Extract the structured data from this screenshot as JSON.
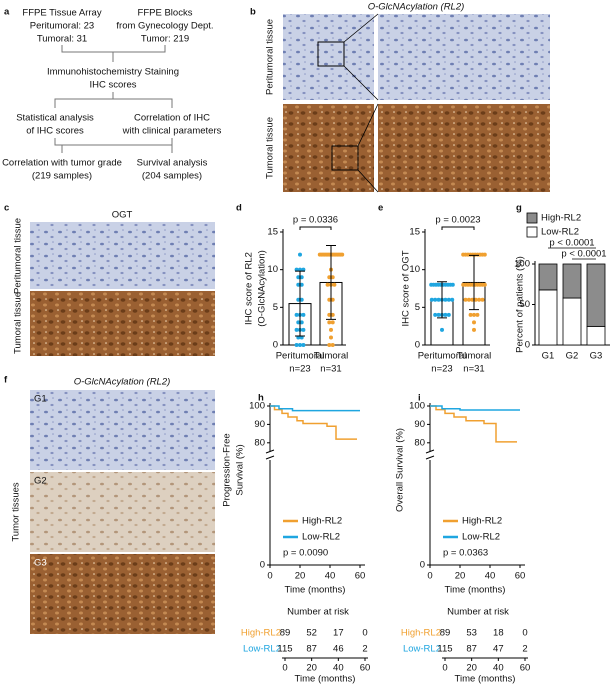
{
  "panel_labels": [
    "a",
    "b",
    "c",
    "d",
    "e",
    "f",
    "g",
    "h",
    "i"
  ],
  "flowchart": {
    "nodes": [
      {
        "lines": [
          "FFPE Tissue Array",
          "Peritumoral: 23",
          "Tumoral: 31"
        ]
      },
      {
        "lines": [
          "FFPE Blocks",
          "from Gynecology Dept.",
          "Tumor: 219"
        ]
      },
      {
        "lines": [
          "Immunohistochemistry Staining",
          "IHC scores"
        ]
      },
      {
        "lines": [
          "Statistical analysis",
          "of IHC scores"
        ]
      },
      {
        "lines": [
          "Correlation of IHC",
          "with clinical parameters"
        ]
      },
      {
        "lines": [
          "Correlation with tumor grade",
          "(219 samples)"
        ]
      },
      {
        "lines": [
          "Survival analysis",
          "(204 samples)"
        ]
      }
    ]
  },
  "images": {
    "b": {
      "title": "O-GlcNAcylation (RL2)",
      "rows": [
        "Peritumoral tissue",
        "Tumoral tissue"
      ]
    },
    "c": {
      "title": "OGT",
      "rows": [
        "Peritumoral tissue",
        "Tumoral tissue"
      ]
    },
    "f": {
      "title": "O-GlcNAcylation (RL2)",
      "side_label": "Tumor tissues",
      "grades": [
        "G1",
        "G2",
        "G3"
      ]
    }
  },
  "chart_data": [
    {
      "type": "bar_scatter",
      "ylabel": [
        "IHC score of RL2",
        "(O-GlcNAcylation)"
      ],
      "categories": [
        "Peritumoral",
        "Tumoral"
      ],
      "n_labels": [
        "n=23",
        "n=31"
      ],
      "series": [
        {
          "color": "#1fa6e0",
          "value": 5.5,
          "error": 4.3,
          "points": [
            0,
            0,
            0,
            1,
            1,
            2,
            2,
            2,
            3,
            3,
            4,
            4,
            4,
            6,
            6,
            8,
            8,
            9,
            9,
            10,
            10,
            10,
            12
          ]
        },
        {
          "color": "#f0a030",
          "value": 8.3,
          "error": 4.9,
          "points": [
            0,
            0,
            1,
            2,
            3,
            3,
            4,
            4,
            6,
            6,
            8,
            8,
            8,
            9,
            9,
            10,
            12,
            12,
            12,
            12,
            12,
            12,
            12,
            12,
            12,
            12,
            12,
            12,
            12,
            12,
            12
          ]
        }
      ],
      "ylim": [
        0,
        15
      ],
      "yticks": [
        0,
        5,
        10,
        15
      ],
      "annotation": "p = 0.0336"
    },
    {
      "type": "bar_scatter",
      "ylabel": [
        "IHC score of OGT"
      ],
      "categories": [
        "Peritumoral",
        "Tumoral"
      ],
      "n_labels": [
        "n=23",
        "n=31"
      ],
      "series": [
        {
          "color": "#1fa6e0",
          "value": 6.0,
          "error": 2.4,
          "points": [
            2,
            4,
            4,
            4,
            4,
            4,
            6,
            6,
            6,
            6,
            6,
            6,
            6,
            8,
            8,
            8,
            8,
            8,
            8,
            8,
            8,
            8,
            8
          ]
        },
        {
          "color": "#f0a030",
          "value": 8.3,
          "error": 3.6,
          "points": [
            2,
            3,
            4,
            4,
            4,
            6,
            6,
            6,
            6,
            6,
            6,
            8,
            8,
            8,
            8,
            8,
            8,
            8,
            8,
            8,
            8,
            12,
            12,
            12,
            12,
            12,
            12,
            12,
            12,
            12,
            12
          ]
        }
      ],
      "ylim": [
        0,
        15
      ],
      "yticks": [
        0,
        5,
        10,
        15
      ],
      "annotation": "p = 0.0023"
    },
    {
      "type": "stacked_bar",
      "ylabel": [
        "Percent of patients (%)"
      ],
      "categories": [
        "G1",
        "G2",
        "G3"
      ],
      "series": [
        {
          "name": "Low-RL2",
          "color": "#ffffff",
          "values": [
            68,
            58,
            23
          ]
        },
        {
          "name": "High-RL2",
          "color": "#8c8c8c",
          "values": [
            32,
            42,
            77
          ]
        }
      ],
      "ylim": [
        0,
        100
      ],
      "yticks": [
        0,
        50,
        100
      ],
      "comparisons": [
        {
          "between": [
            "G1",
            "G3"
          ],
          "label": "p < 0.0001"
        },
        {
          "between": [
            "G2",
            "G3"
          ],
          "label": "p < 0.0001"
        }
      ]
    },
    {
      "type": "kaplan_meier",
      "ylabel": [
        "Progression-Free",
        "Survival (%)"
      ],
      "xlabel": "Time (months)",
      "series": [
        {
          "name": "High-RL2",
          "color": "#f0a030",
          "x": [
            0,
            3,
            3,
            8,
            8,
            12,
            12,
            18,
            18,
            22,
            22,
            38,
            38,
            44,
            44,
            58
          ],
          "y": [
            100,
            100,
            98,
            98,
            96,
            96,
            94,
            94,
            92,
            92,
            90.5,
            90.5,
            89,
            89,
            82,
            82
          ],
          "at_risk": [
            89,
            52,
            17,
            0
          ]
        },
        {
          "name": "Low-RL2",
          "color": "#1fa6e0",
          "x": [
            0,
            6,
            6,
            15,
            15,
            60
          ],
          "y": [
            100,
            100,
            98.5,
            98.5,
            97.5,
            97.5
          ],
          "at_risk": [
            115,
            87,
            46,
            2
          ]
        }
      ],
      "xlim": [
        0,
        60
      ],
      "xticks": [
        0,
        20,
        40,
        60
      ],
      "ylim": [
        75,
        100
      ],
      "yticks": [
        80,
        90,
        100
      ],
      "ybreak_tick": 0,
      "annotation": "p = 0.0090",
      "risk_table": {
        "title": "Number at risk",
        "times": [
          0,
          20,
          40,
          60
        ],
        "xlabel": "Time (months)"
      }
    },
    {
      "type": "kaplan_meier",
      "ylabel": [
        "Overall Survival (%)"
      ],
      "xlabel": "Time (months)",
      "series": [
        {
          "name": "High-RL2",
          "color": "#f0a030",
          "x": [
            0,
            4,
            4,
            10,
            10,
            16,
            16,
            24,
            24,
            36,
            36,
            44,
            44,
            58
          ],
          "y": [
            100,
            100,
            98,
            98,
            96,
            96,
            94,
            94,
            92,
            92,
            90.5,
            90.5,
            80.5,
            80.5
          ],
          "at_risk": [
            89,
            53,
            18,
            0
          ]
        },
        {
          "name": "Low-RL2",
          "color": "#1fa6e0",
          "x": [
            0,
            8,
            8,
            20,
            20,
            60
          ],
          "y": [
            100,
            100,
            98.5,
            98.5,
            97.8,
            97.8
          ],
          "at_risk": [
            115,
            87,
            47,
            2
          ]
        }
      ],
      "xlim": [
        0,
        60
      ],
      "xticks": [
        0,
        20,
        40,
        60
      ],
      "ylim": [
        75,
        100
      ],
      "yticks": [
        80,
        90,
        100
      ],
      "ybreak_tick": 0,
      "annotation": "p = 0.0363",
      "risk_table": {
        "title": "Number at risk",
        "times": [
          0,
          20,
          40,
          60
        ],
        "xlabel": "Time (months)"
      }
    }
  ]
}
